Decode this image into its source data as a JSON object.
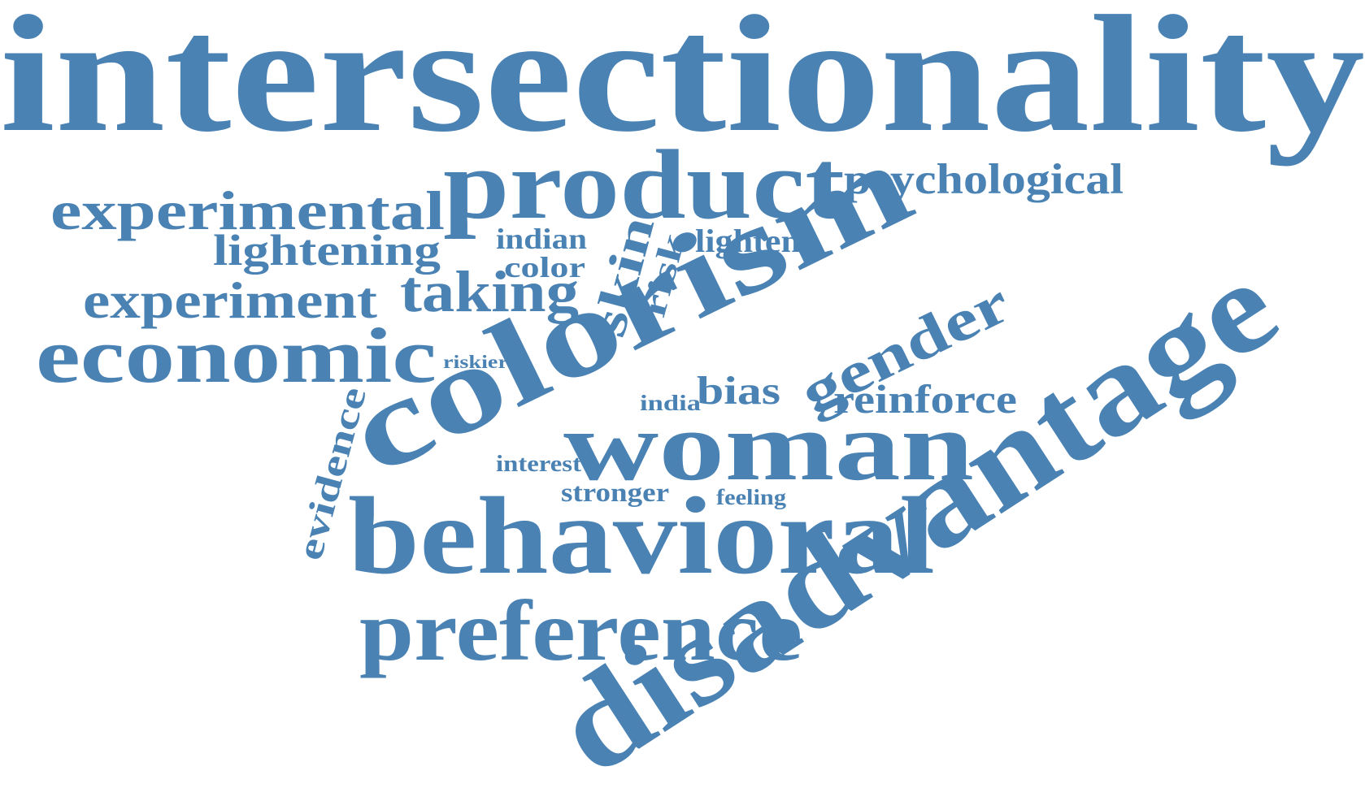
{
  "word_cloud": {
    "color": "#4a82b4",
    "words": {
      "intersectionality": "intersectionality",
      "product": "product",
      "psychological": "psychological",
      "experimental": "experimental",
      "lightening": "lightening",
      "indian": "indian",
      "color": "color",
      "skin": "skin",
      "risk": "risk",
      "lighten": "lighten",
      "experiment": "experiment",
      "taking": "taking",
      "economic": "economic",
      "riskier": "riskier",
      "colorism": "colorism",
      "gender": "gender",
      "bias": "bias",
      "india": "india",
      "reinforce": "reinforce",
      "evidence": "evidence",
      "woman": "woman",
      "interest": "interest",
      "stronger": "stronger",
      "feeling": "feeling",
      "behavioral": "behavioral",
      "preference": "preference",
      "disadvantage": "disadvantage"
    }
  }
}
